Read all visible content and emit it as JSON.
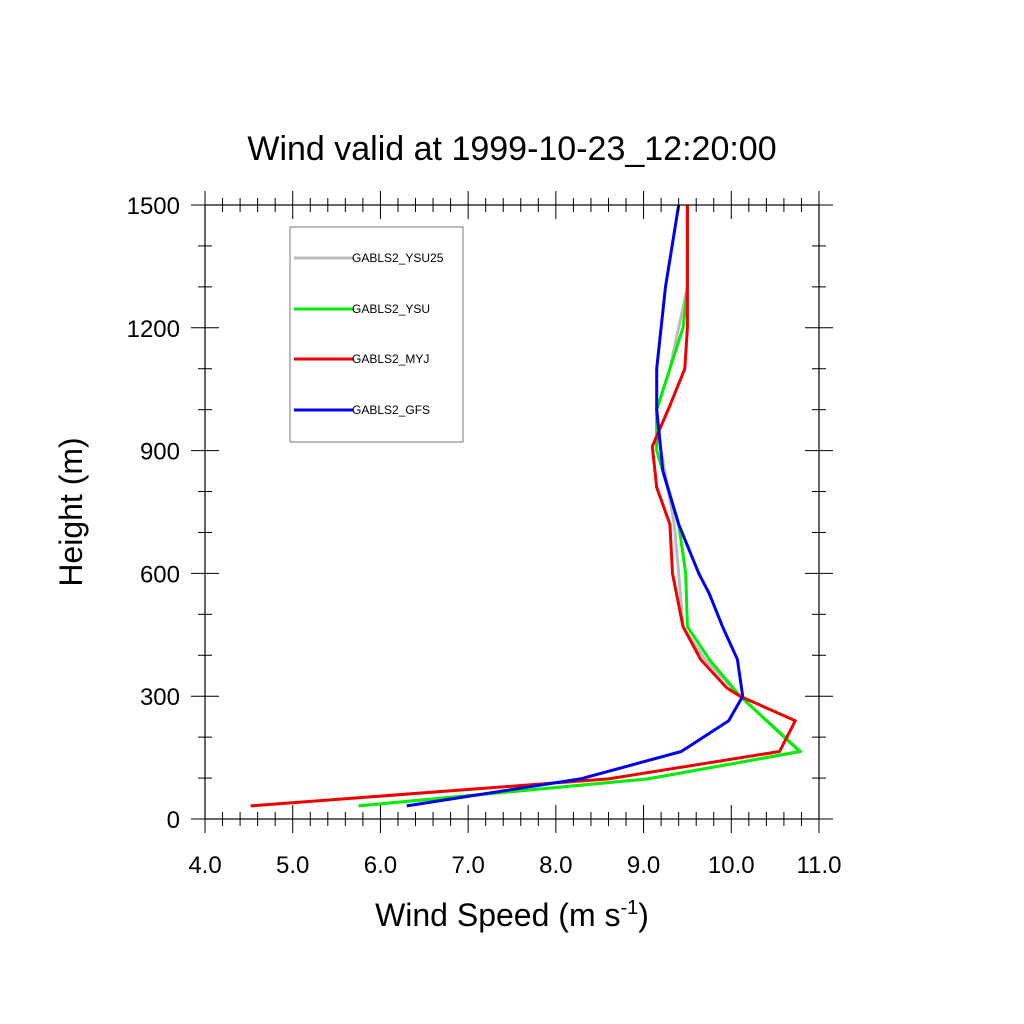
{
  "chart_data": {
    "type": "line",
    "title": "Wind valid at 1999-10-23_12:20:00",
    "xlabel": "Wind Speed (m s",
    "xlabel_sup": "-1",
    "xlabel_close": ")",
    "ylabel": "Height (m)",
    "xlim": [
      4.0,
      11.0
    ],
    "ylim": [
      0,
      1500
    ],
    "xticks": [
      "4.0",
      "5.0",
      "6.0",
      "7.0",
      "8.0",
      "9.0",
      "10.0",
      "11.0"
    ],
    "yticks": [
      "0",
      "300",
      "600",
      "900",
      "1200",
      "1500"
    ],
    "grid": false,
    "legend_position": "top-left",
    "series": [
      {
        "name": "GABLS2_YSU25",
        "color": "#bbbbbb",
        "points": [
          [
            5.75,
            32
          ],
          [
            9.05,
            98
          ],
          [
            10.8,
            165
          ],
          [
            10.1,
            300
          ],
          [
            9.7,
            390
          ],
          [
            9.45,
            470
          ],
          [
            9.4,
            600
          ],
          [
            9.35,
            720
          ],
          [
            9.2,
            900
          ],
          [
            9.15,
            1000
          ],
          [
            9.3,
            1100
          ],
          [
            9.5,
            1300
          ],
          [
            9.5,
            1500
          ]
        ]
      },
      {
        "name": "GABLS2_YSU",
        "color": "#00ee00",
        "points": [
          [
            5.75,
            32
          ],
          [
            9.05,
            98
          ],
          [
            10.78,
            165
          ],
          [
            10.1,
            300
          ],
          [
            9.75,
            390
          ],
          [
            9.5,
            470
          ],
          [
            9.48,
            600
          ],
          [
            9.4,
            720
          ],
          [
            9.15,
            900
          ],
          [
            9.15,
            1000
          ],
          [
            9.3,
            1100
          ],
          [
            9.45,
            1200
          ],
          [
            9.5,
            1300
          ],
          [
            9.5,
            1500
          ]
        ]
      },
      {
        "name": "GABLS2_MYJ",
        "color": "#ee0000",
        "points": [
          [
            4.52,
            32
          ],
          [
            8.6,
            98
          ],
          [
            10.55,
            165
          ],
          [
            10.73,
            240
          ],
          [
            10.1,
            300
          ],
          [
            9.95,
            320
          ],
          [
            9.65,
            390
          ],
          [
            9.45,
            470
          ],
          [
            9.33,
            600
          ],
          [
            9.3,
            720
          ],
          [
            9.15,
            810
          ],
          [
            9.1,
            910
          ],
          [
            9.3,
            1010
          ],
          [
            9.47,
            1100
          ],
          [
            9.5,
            1200
          ],
          [
            9.5,
            1500
          ]
        ]
      },
      {
        "name": "GABLS2_GFS",
        "color": "#0000ee",
        "points": [
          [
            6.3,
            32
          ],
          [
            8.28,
            98
          ],
          [
            9.43,
            165
          ],
          [
            9.97,
            240
          ],
          [
            10.13,
            300
          ],
          [
            10.07,
            390
          ],
          [
            9.9,
            470
          ],
          [
            9.75,
            550
          ],
          [
            9.63,
            600
          ],
          [
            9.4,
            720
          ],
          [
            9.22,
            850
          ],
          [
            9.15,
            1000
          ],
          [
            9.15,
            1100
          ],
          [
            9.25,
            1300
          ],
          [
            9.4,
            1500
          ]
        ]
      }
    ]
  }
}
